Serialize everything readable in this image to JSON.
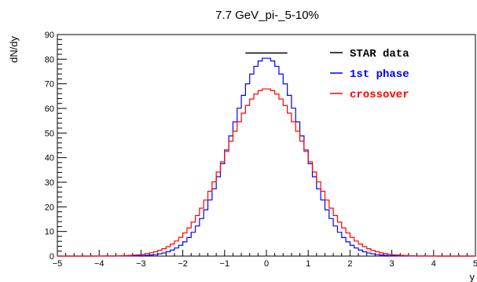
{
  "chart_data": {
    "type": "line",
    "title": "7.7 GeV_pi-_5-10%",
    "xlabel": "y",
    "ylabel": "dN/dy",
    "xlim": [
      -5,
      5
    ],
    "ylim": [
      0,
      90
    ],
    "x_ticks": [
      -5,
      -4,
      -3,
      -2,
      -1,
      0,
      1,
      2,
      3,
      4,
      5
    ],
    "y_ticks": [
      0,
      10,
      20,
      30,
      40,
      50,
      60,
      70,
      80,
      90
    ],
    "grid": false,
    "legend_position": "top-right",
    "bin_width": 0.1,
    "series": [
      {
        "name": "STAR data",
        "color": "#000000",
        "style": "segment",
        "x": [
          -0.5,
          0.5
        ],
        "y": [
          82.5,
          82.5
        ]
      },
      {
        "name": "1st phase",
        "color": "#0000ff",
        "style": "step",
        "peak": 80.5,
        "sigma": 0.85
      },
      {
        "name": "crossover",
        "color": "#ff0000",
        "style": "step",
        "peak": 68,
        "sigma": 0.98
      }
    ]
  }
}
